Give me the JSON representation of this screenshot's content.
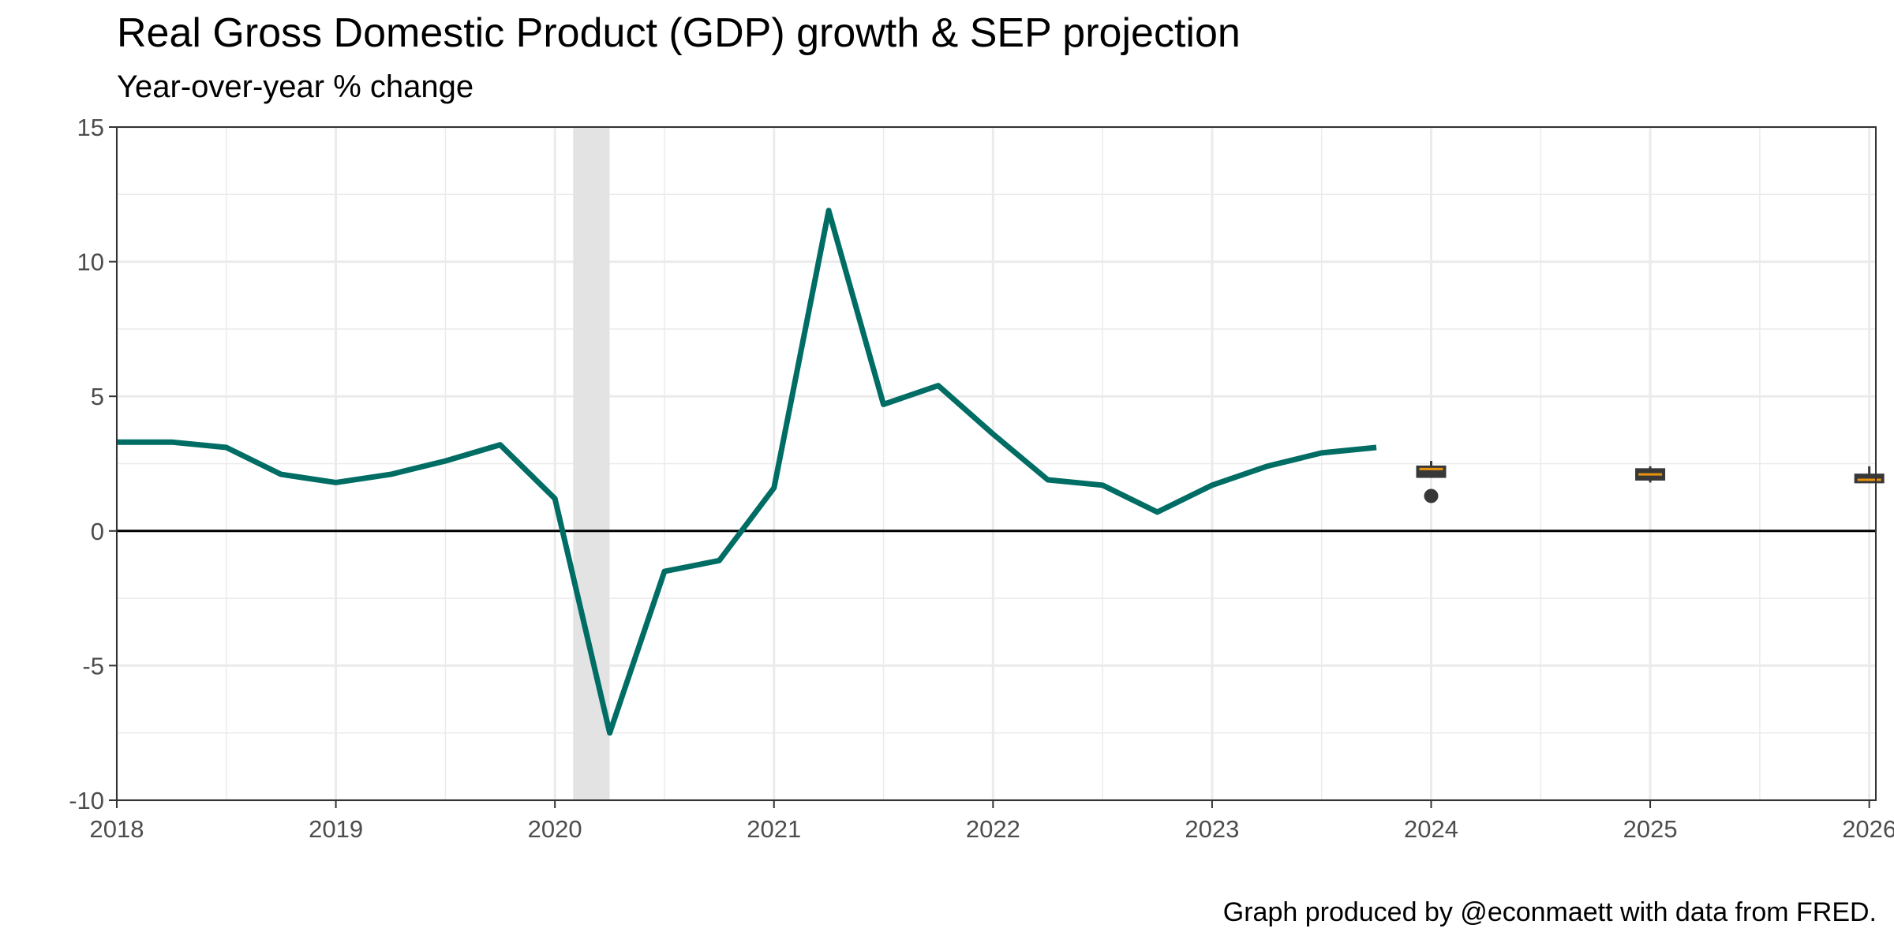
{
  "title": "Real Gross Domestic Product (GDP) growth & SEP projection",
  "subtitle": "Year-over-year % change",
  "caption": "Graph produced by @econmaett with data from FRED.",
  "colors": {
    "line": "#006d65",
    "recession": "#e3e3e3",
    "box_fill": "#383838",
    "median": "#e8930e",
    "zero_line": "#000000",
    "grid": "#ebebeb"
  },
  "chart_data": {
    "type": "line",
    "title": "Real Gross Domestic Product (GDP) growth & SEP projection",
    "subtitle": "Year-over-year % change",
    "xlabel": "",
    "ylabel": "",
    "xlim": [
      2018,
      2026.03
    ],
    "ylim": [
      -10,
      15
    ],
    "x_ticks": [
      "2018",
      "2019",
      "2020",
      "2021",
      "2022",
      "2023",
      "2024",
      "2025",
      "2026"
    ],
    "y_ticks": [
      "-10",
      "-5",
      "0",
      "5",
      "10",
      "15"
    ],
    "grid": true,
    "recession": {
      "start": "2020-02",
      "end": "2020-04"
    },
    "series": [
      {
        "type": "line",
        "x": [
          "2018-01",
          "2018-04",
          "2018-07",
          "2018-10",
          "2019-01",
          "2019-04",
          "2019-07",
          "2019-10",
          "2020-01",
          "2020-04",
          "2020-07",
          "2020-10",
          "2021-01",
          "2021-04",
          "2021-07",
          "2021-10",
          "2022-01",
          "2022-04",
          "2022-07",
          "2022-10",
          "2023-01",
          "2023-04",
          "2023-07",
          "2023-10"
        ],
        "y": [
          3.3,
          3.3,
          3.1,
          2.1,
          1.8,
          2.1,
          2.6,
          3.2,
          1.2,
          -7.5,
          -1.5,
          -1.1,
          1.6,
          11.9,
          4.7,
          5.4,
          3.6,
          1.9,
          1.7,
          0.7,
          1.7,
          2.4,
          2.9,
          3.1
        ]
      },
      {
        "type": "boxplot",
        "x": [
          "2024",
          "2025",
          "2026"
        ],
        "boxes": [
          {
            "min": 2.0,
            "q1": 2.0,
            "median": 2.3,
            "q3": 2.4,
            "max": 2.6,
            "outliers": [
              1.3
            ]
          },
          {
            "min": 1.8,
            "q1": 1.9,
            "median": 2.1,
            "q3": 2.3,
            "max": 2.4,
            "outliers": []
          },
          {
            "min": 1.8,
            "q1": 1.8,
            "median": 1.9,
            "q3": 2.1,
            "max": 2.4,
            "outliers": []
          }
        ]
      }
    ]
  }
}
